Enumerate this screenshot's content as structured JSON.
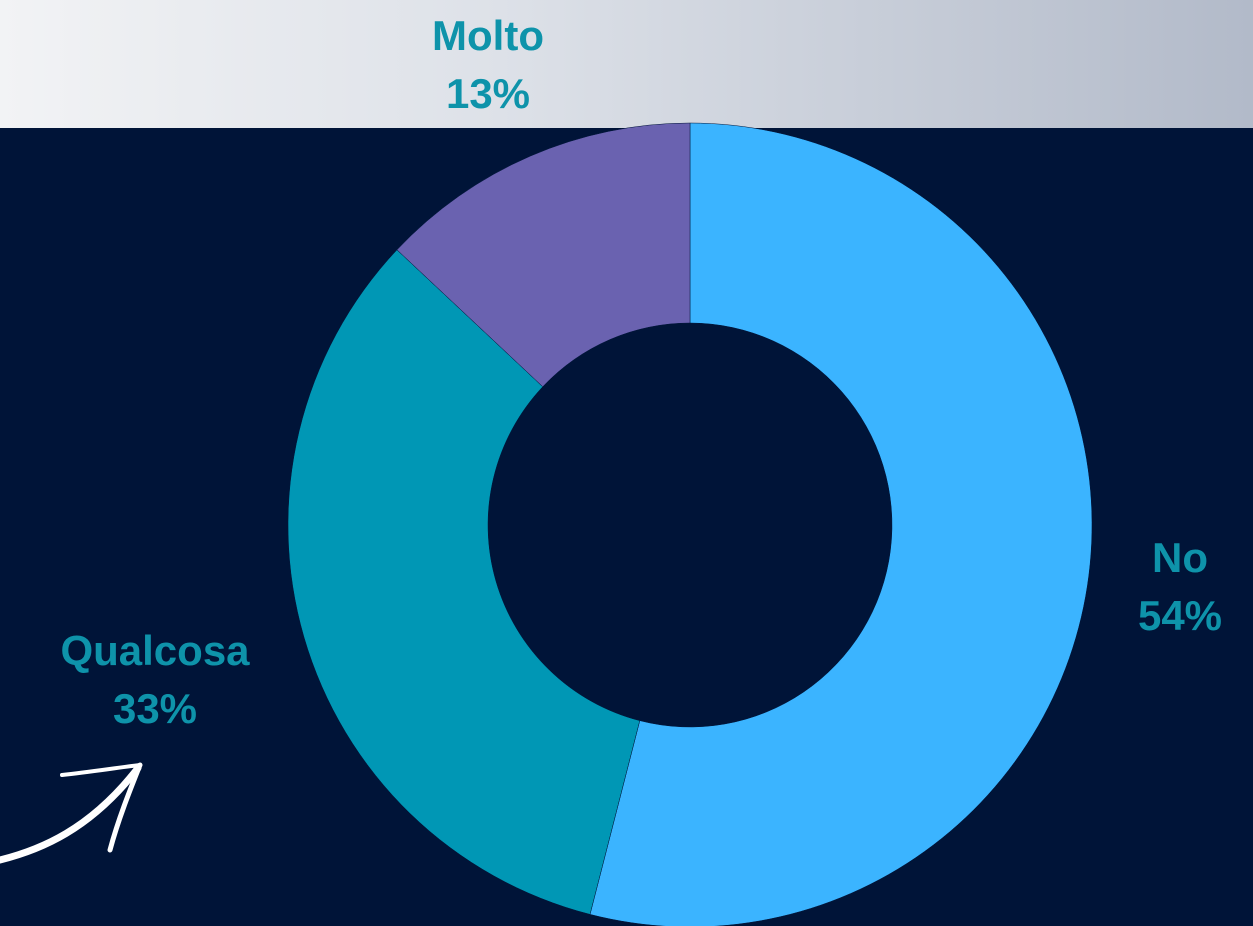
{
  "chart_data": {
    "type": "pie",
    "categories": [
      "No",
      "Qualcosa",
      "Molto"
    ],
    "values": [
      54,
      33,
      13
    ],
    "value_labels": [
      "54%",
      "33%",
      "13%"
    ],
    "colors": [
      "#3bb4ff",
      "#0097b5",
      "#6a62b0"
    ]
  }
}
